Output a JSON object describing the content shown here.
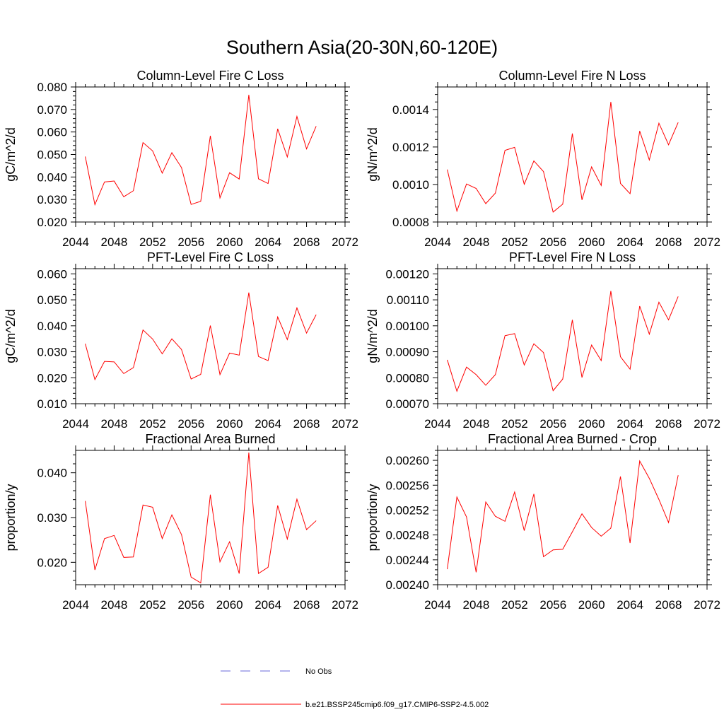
{
  "figure": {
    "title": "Southern Asia(20-30N,60-120E)"
  },
  "legend": {
    "obs_label": "No Obs",
    "model_label": "b.e21.BSSP245cmip6.f09_g17.CMIP6-SSP2-4.5.002",
    "obs_color": "#6a6adb",
    "model_color": "#ff0000"
  },
  "chart_data": [
    {
      "id": "col-fire-c",
      "type": "line",
      "title": "Column-Level Fire C Loss",
      "ylabel": "gC/m^2/d",
      "xlabel": "",
      "xlim": [
        2044,
        2072
      ],
      "ylim": [
        0.02,
        0.08
      ],
      "xticks": [
        2044,
        2048,
        2052,
        2056,
        2060,
        2064,
        2068,
        2072
      ],
      "yticks": [
        0.02,
        0.03,
        0.04,
        0.05,
        0.06,
        0.07,
        0.08
      ],
      "ytick_labels": [
        "0.020",
        "0.030",
        "0.040",
        "0.050",
        "0.060",
        "0.070",
        "0.080"
      ],
      "x": [
        2045,
        2046,
        2047,
        2048,
        2049,
        2050,
        2051,
        2052,
        2053,
        2054,
        2055,
        2056,
        2057,
        2058,
        2059,
        2060,
        2061,
        2062,
        2063,
        2064,
        2065,
        2066,
        2067,
        2068,
        2069
      ],
      "series": [
        {
          "name": "b.e21.BSSP245cmip6.f09_g17.CMIP6-SSP2-4.5.002",
          "values": [
            0.0491,
            0.0277,
            0.0378,
            0.0382,
            0.0312,
            0.0339,
            0.0553,
            0.0516,
            0.0417,
            0.0508,
            0.0442,
            0.0278,
            0.0292,
            0.0583,
            0.0307,
            0.0419,
            0.0391,
            0.0765,
            0.0392,
            0.0371,
            0.0614,
            0.0489,
            0.0669,
            0.0525,
            0.0626
          ]
        }
      ]
    },
    {
      "id": "col-fire-n",
      "type": "line",
      "title": "Column-Level Fire N Loss",
      "ylabel": "gN/m^2/d",
      "xlabel": "",
      "xlim": [
        2044,
        2072
      ],
      "ylim": [
        0.0008,
        0.00152
      ],
      "xticks": [
        2044,
        2048,
        2052,
        2056,
        2060,
        2064,
        2068,
        2072
      ],
      "yticks": [
        0.0008,
        0.001,
        0.0012,
        0.0014
      ],
      "ytick_labels": [
        "0.0008",
        "0.0010",
        "0.0012",
        "0.0014"
      ],
      "x": [
        2045,
        2046,
        2047,
        2048,
        2049,
        2050,
        2051,
        2052,
        2053,
        2054,
        2055,
        2056,
        2057,
        2058,
        2059,
        2060,
        2061,
        2062,
        2063,
        2064,
        2065,
        2066,
        2067,
        2068,
        2069
      ],
      "series": [
        {
          "name": "b.e21.BSSP245cmip6.f09_g17.CMIP6-SSP2-4.5.002",
          "values": [
            0.00108,
            0.000858,
            0.001003,
            0.000979,
            0.000898,
            0.000954,
            0.001182,
            0.001198,
            0.001001,
            0.001126,
            0.001069,
            0.000853,
            0.000895,
            0.001272,
            0.000918,
            0.001094,
            0.000995,
            0.00144,
            0.001006,
            0.000951,
            0.001285,
            0.001131,
            0.001327,
            0.001212,
            0.001331
          ]
        }
      ]
    },
    {
      "id": "pft-fire-c",
      "type": "line",
      "title": "PFT-Level Fire C Loss",
      "ylabel": "gC/m^2/d",
      "xlabel": "",
      "xlim": [
        2044,
        2072
      ],
      "ylim": [
        0.01,
        0.062
      ],
      "xticks": [
        2044,
        2048,
        2052,
        2056,
        2060,
        2064,
        2068,
        2072
      ],
      "yticks": [
        0.01,
        0.02,
        0.03,
        0.04,
        0.05,
        0.06
      ],
      "ytick_labels": [
        "0.010",
        "0.020",
        "0.030",
        "0.040",
        "0.050",
        "0.060"
      ],
      "x": [
        2045,
        2046,
        2047,
        2048,
        2049,
        2050,
        2051,
        2052,
        2053,
        2054,
        2055,
        2056,
        2057,
        2058,
        2059,
        2060,
        2061,
        2062,
        2063,
        2064,
        2065,
        2066,
        2067,
        2068,
        2069
      ],
      "series": [
        {
          "name": "b.e21.BSSP245cmip6.f09_g17.CMIP6-SSP2-4.5.002",
          "values": [
            0.0331,
            0.0193,
            0.0263,
            0.0261,
            0.0216,
            0.0239,
            0.0384,
            0.0349,
            0.0292,
            0.035,
            0.0309,
            0.0195,
            0.0213,
            0.0401,
            0.0212,
            0.0295,
            0.0287,
            0.0528,
            0.0282,
            0.0266,
            0.0434,
            0.0347,
            0.0469,
            0.0372,
            0.0443
          ]
        }
      ]
    },
    {
      "id": "pft-fire-n",
      "type": "line",
      "title": "PFT-Level Fire N Loss",
      "ylabel": "gN/m^2/d",
      "xlabel": "",
      "xlim": [
        2044,
        2072
      ],
      "ylim": [
        0.0007,
        0.00122
      ],
      "xticks": [
        2044,
        2048,
        2052,
        2056,
        2060,
        2064,
        2068,
        2072
      ],
      "yticks": [
        0.0007,
        0.0008,
        0.0009,
        0.001,
        0.0011,
        0.0012
      ],
      "ytick_labels": [
        "0.00070",
        "0.00080",
        "0.00090",
        "0.00100",
        "0.00110",
        "0.00120"
      ],
      "x": [
        2045,
        2046,
        2047,
        2048,
        2049,
        2050,
        2051,
        2052,
        2053,
        2054,
        2055,
        2056,
        2057,
        2058,
        2059,
        2060,
        2061,
        2062,
        2063,
        2064,
        2065,
        2066,
        2067,
        2068,
        2069
      ],
      "series": [
        {
          "name": "b.e21.BSSP245cmip6.f09_g17.CMIP6-SSP2-4.5.002",
          "values": [
            0.000869,
            0.000748,
            0.000841,
            0.000812,
            0.000771,
            0.000812,
            0.000962,
            0.00097,
            0.000849,
            0.000931,
            0.000897,
            0.00075,
            0.000795,
            0.001023,
            0.000801,
            0.000926,
            0.000866,
            0.001134,
            0.000881,
            0.000833,
            0.001076,
            0.000968,
            0.001091,
            0.001023,
            0.001113
          ]
        }
      ]
    },
    {
      "id": "frac-area-burned",
      "type": "line",
      "title": "Fractional Area Burned",
      "ylabel": "proportion/y",
      "xlabel": "",
      "xlim": [
        2044,
        2072
      ],
      "ylim": [
        0.015,
        0.045
      ],
      "xticks": [
        2044,
        2048,
        2052,
        2056,
        2060,
        2064,
        2068,
        2072
      ],
      "yticks": [
        0.02,
        0.03,
        0.04
      ],
      "ytick_labels": [
        "0.020",
        "0.030",
        "0.040"
      ],
      "x": [
        2045,
        2046,
        2047,
        2048,
        2049,
        2050,
        2051,
        2052,
        2053,
        2054,
        2055,
        2056,
        2057,
        2058,
        2059,
        2060,
        2061,
        2062,
        2063,
        2064,
        2065,
        2066,
        2067,
        2068,
        2069
      ],
      "series": [
        {
          "name": "b.e21.BSSP245cmip6.f09_g17.CMIP6-SSP2-4.5.002",
          "values": [
            0.0337,
            0.0183,
            0.0253,
            0.026,
            0.0211,
            0.0212,
            0.0328,
            0.0323,
            0.0253,
            0.0306,
            0.0262,
            0.0167,
            0.0154,
            0.0351,
            0.0201,
            0.0246,
            0.0175,
            0.0445,
            0.0175,
            0.0189,
            0.0327,
            0.0252,
            0.0341,
            0.0273,
            0.0293
          ]
        }
      ]
    },
    {
      "id": "frac-area-burned-crop",
      "type": "line",
      "title": "Fractional Area Burned - Crop",
      "ylabel": "proportion/y",
      "xlabel": "",
      "xlim": [
        2044,
        2072
      ],
      "ylim": [
        0.0024,
        0.002616
      ],
      "xticks": [
        2044,
        2048,
        2052,
        2056,
        2060,
        2064,
        2068,
        2072
      ],
      "yticks": [
        0.0024,
        0.00244,
        0.00248,
        0.00252,
        0.00256,
        0.0026
      ],
      "ytick_labels": [
        "0.00240",
        "0.00244",
        "0.00248",
        "0.00252",
        "0.00256",
        "0.00260"
      ],
      "x": [
        2045,
        2046,
        2047,
        2048,
        2049,
        2050,
        2051,
        2052,
        2053,
        2054,
        2055,
        2056,
        2057,
        2058,
        2059,
        2060,
        2061,
        2062,
        2063,
        2064,
        2065,
        2066,
        2067,
        2068,
        2069
      ],
      "series": [
        {
          "name": "b.e21.BSSP245cmip6.f09_g17.CMIP6-SSP2-4.5.002",
          "values": [
            0.002425,
            0.002541,
            0.002509,
            0.00242,
            0.002533,
            0.00251,
            0.002502,
            0.002549,
            0.002487,
            0.002546,
            0.002445,
            0.002456,
            0.002457,
            0.002485,
            0.002514,
            0.002492,
            0.002478,
            0.002491,
            0.002574,
            0.002467,
            0.002599,
            0.002571,
            0.002537,
            0.0025,
            0.002576
          ]
        }
      ]
    }
  ]
}
